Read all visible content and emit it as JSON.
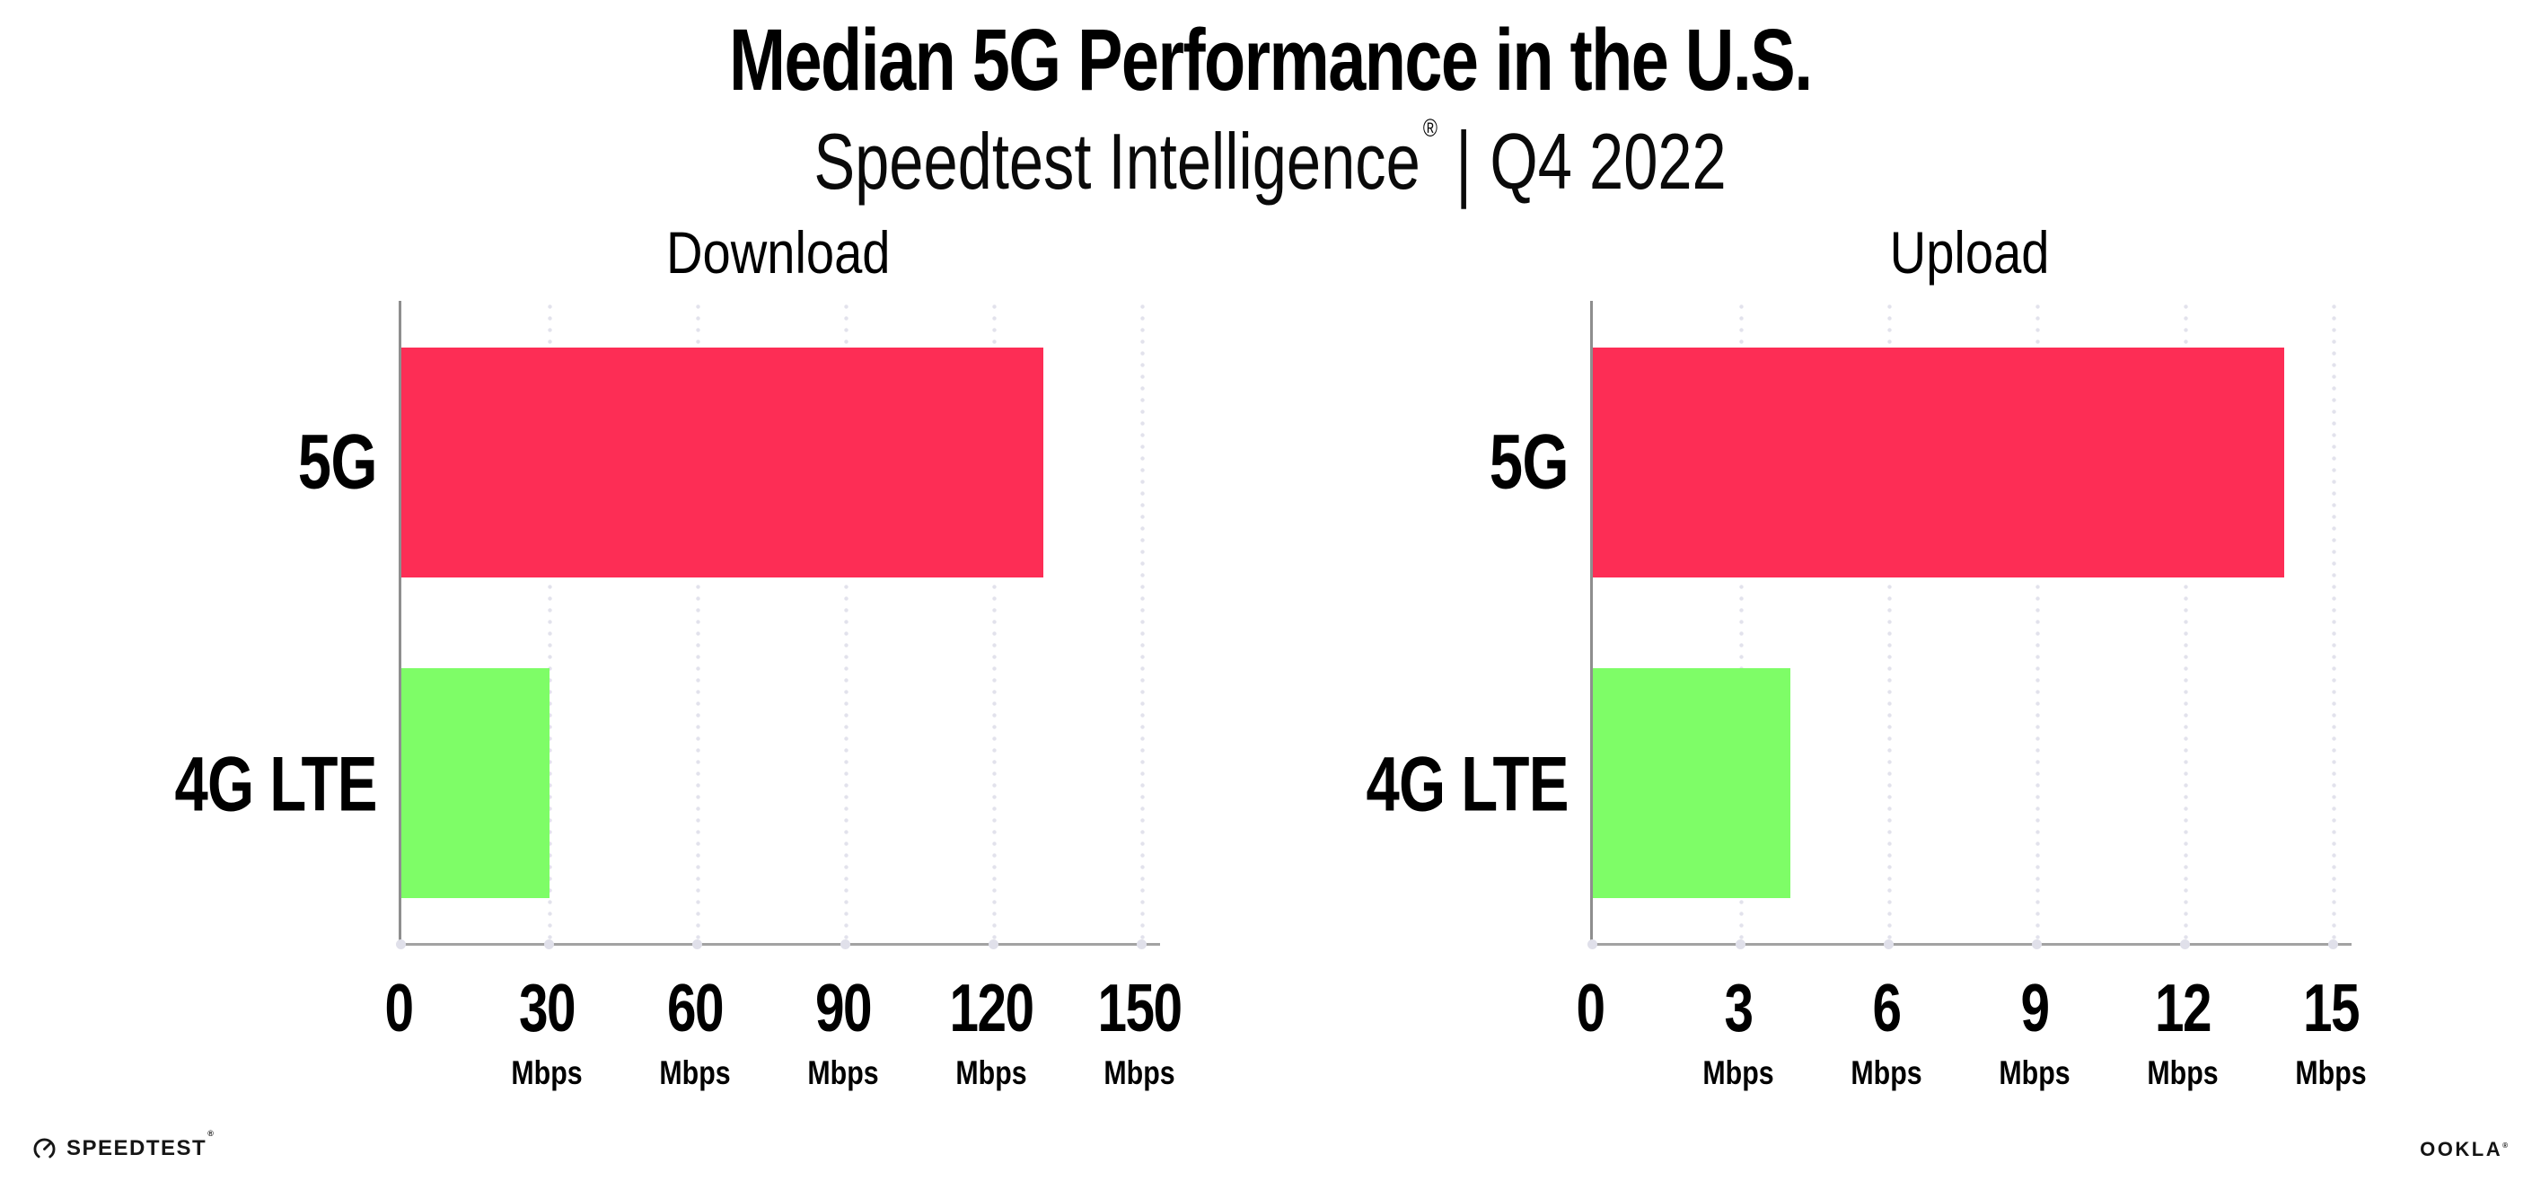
{
  "header": {
    "title": "Median 5G Performance in the U.S.",
    "subtitle_brand": "Speedtest Intelligence",
    "subtitle_reg": "®",
    "subtitle_separator": "|",
    "subtitle_period": "Q4 2022"
  },
  "colors": {
    "bar_5g": "#FD2D55",
    "bar_4g_lte": "#7EFD67",
    "axis_line": "#9a9a9a",
    "gridline_dots": "#e2e2ec",
    "text": "#000000"
  },
  "chart_data": [
    {
      "type": "bar",
      "orientation": "horizontal",
      "title": "Download",
      "categories": [
        "5G",
        "4G LTE"
      ],
      "values": [
        130,
        30
      ],
      "unit": "Mbps",
      "xlim": [
        0,
        150
      ],
      "xticks": [
        0,
        30,
        60,
        90,
        120,
        150
      ],
      "tick_unit_label": "Mbps",
      "grid": "dotted-vertical",
      "legend": "none",
      "colors": [
        "#FD2D55",
        "#7EFD67"
      ]
    },
    {
      "type": "bar",
      "orientation": "horizontal",
      "title": "Upload",
      "categories": [
        "5G",
        "4G LTE"
      ],
      "values": [
        14,
        4
      ],
      "unit": "Mbps",
      "xlim": [
        0,
        15
      ],
      "xticks": [
        0,
        3,
        6,
        9,
        12,
        15
      ],
      "tick_unit_label": "Mbps",
      "grid": "dotted-vertical",
      "legend": "none",
      "colors": [
        "#FD2D55",
        "#7EFD67"
      ]
    }
  ],
  "footer": {
    "speedtest_label": "SPEEDTEST",
    "speedtest_reg": "®",
    "ookla_label": "OOKLA",
    "ookla_reg": "®"
  }
}
